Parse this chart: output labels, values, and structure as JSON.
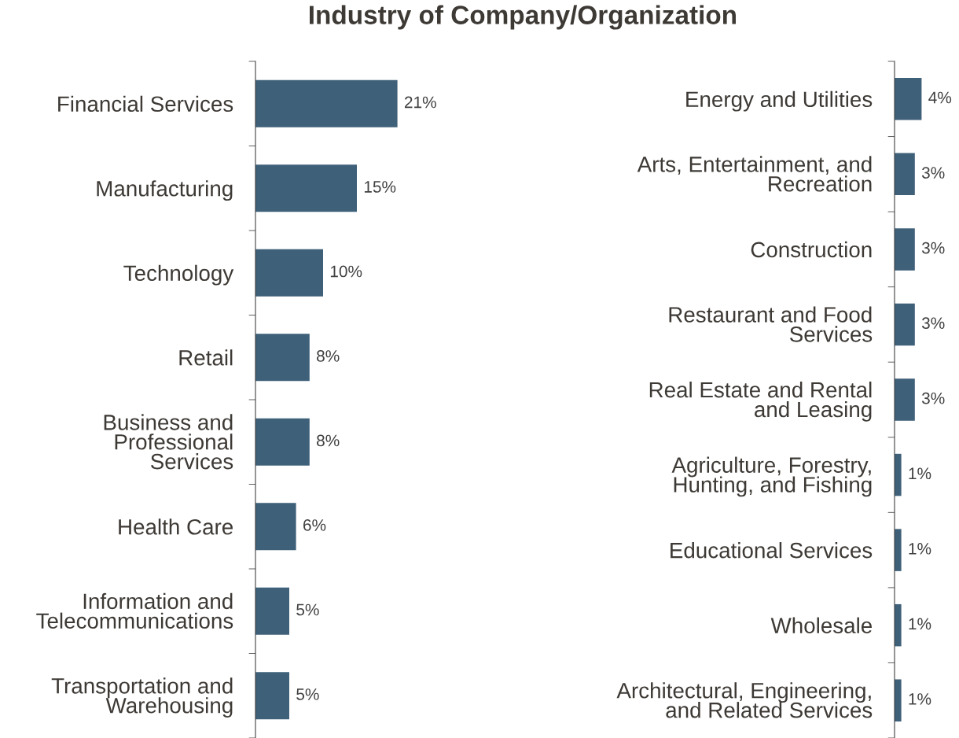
{
  "chart_data": [
    {
      "type": "bar",
      "orientation": "horizontal",
      "title": "Industry of Company/Organization",
      "categories": [
        "Financial Services",
        "Manufacturing",
        "Technology",
        "Retail",
        "Business and\nProfessional\nServices",
        "Health Care",
        "Information and\nTelecommunications",
        "Transportation and\nWarehousing"
      ],
      "values": [
        21,
        15,
        10,
        8,
        8,
        6,
        5,
        5
      ],
      "value_labels": [
        "21%",
        "15%",
        "10%",
        "8%",
        "8%",
        "6%",
        "5%",
        "5%"
      ],
      "color": "#3e6079"
    },
    {
      "type": "bar",
      "orientation": "horizontal",
      "categories": [
        "Energy and Utilities",
        "Arts, Entertainment, and\nRecreation",
        "Construction",
        "Restaurant and Food\nServices",
        "Real Estate and Rental\nand Leasing",
        "Agriculture, Forestry,\nHunting, and Fishing",
        "Educational Services",
        "Wholesale",
        "Architectural, Engineering,\nand Related Services"
      ],
      "values": [
        4,
        3,
        3,
        3,
        3,
        1,
        1,
        1,
        1
      ],
      "value_labels": [
        "4%",
        "3%",
        "3%",
        "3%",
        "3%",
        "1%",
        "1%",
        "1%",
        "1%"
      ],
      "color": "#3e6079"
    }
  ]
}
